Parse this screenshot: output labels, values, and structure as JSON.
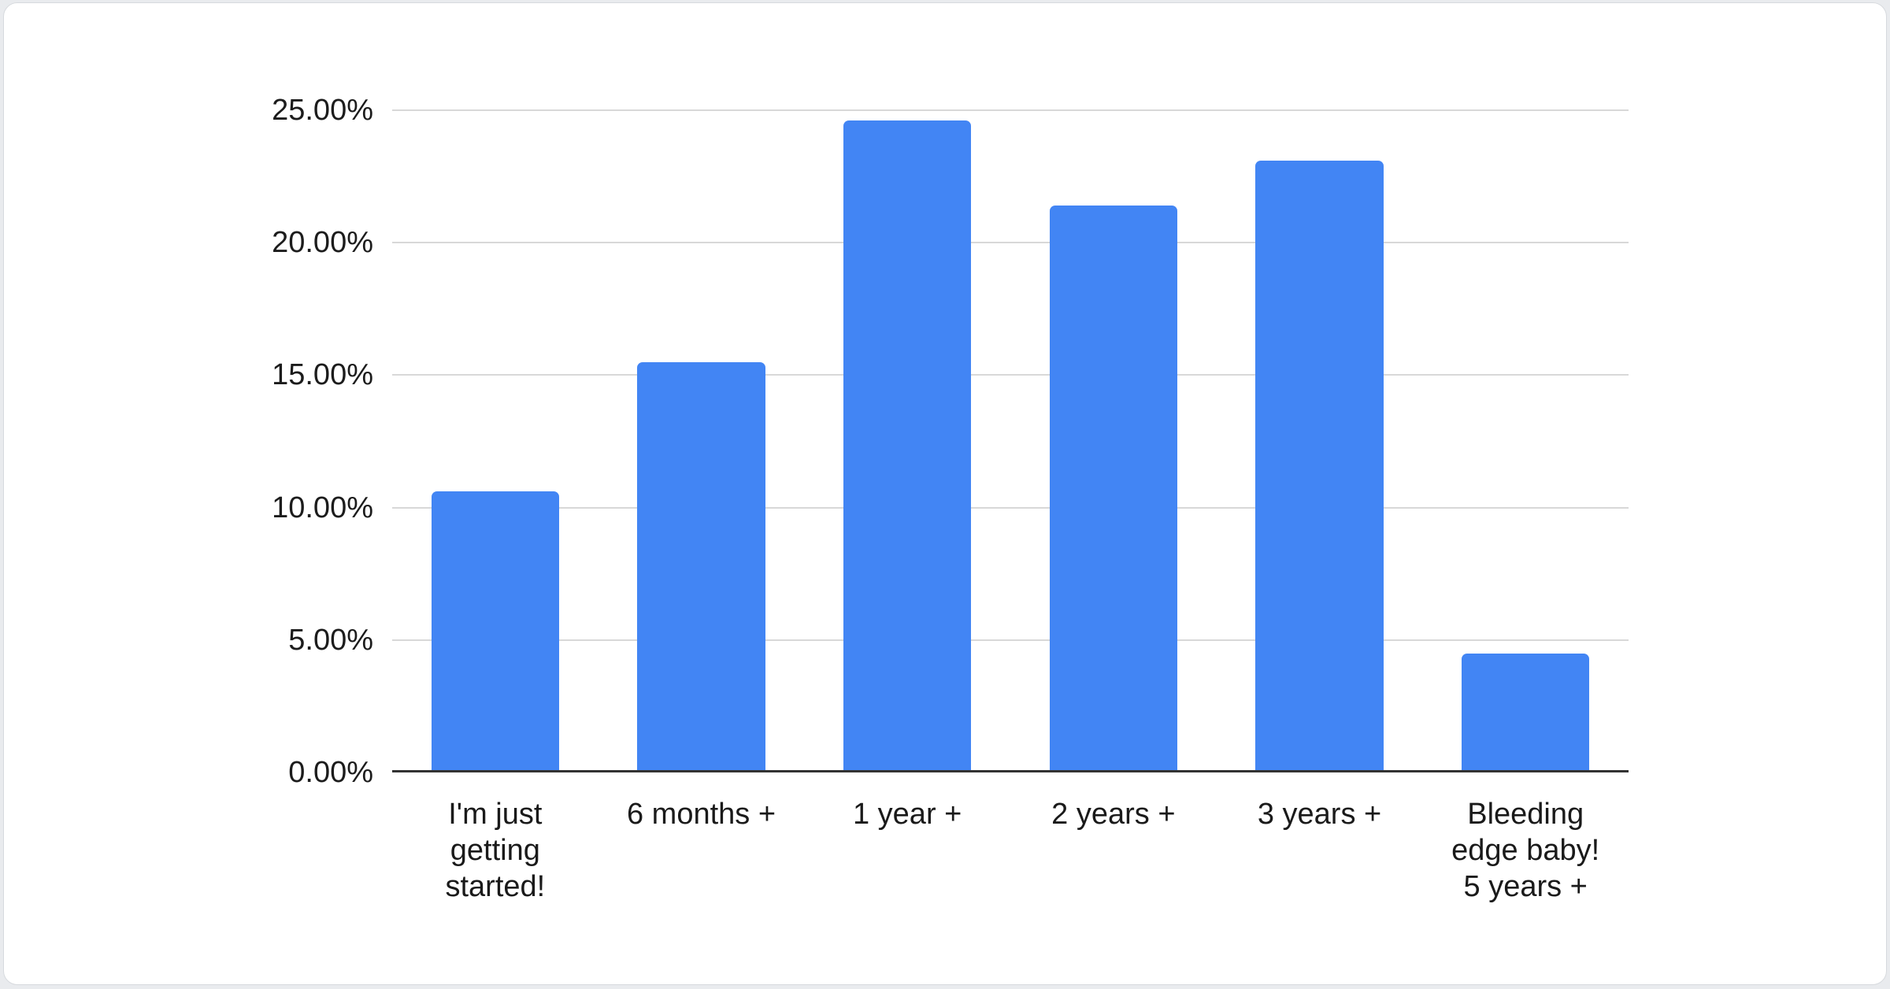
{
  "theme": {
    "page_bg": "#e9ebee",
    "card_bg": "#ffffff",
    "card_border": "#d7dade",
    "text_color": "#1a1a1a"
  },
  "chart_data": {
    "type": "bar",
    "title": "",
    "xlabel": "",
    "ylabel": "",
    "categories": [
      "I'm just\ngetting\nstarted!",
      "6 months +",
      "1 year +",
      "2 years +",
      "3 years +",
      "Bleeding\nedge baby!\n5 years +"
    ],
    "values": [
      10.6,
      15.5,
      24.6,
      21.4,
      23.1,
      4.5
    ],
    "value_unit": "percent",
    "ylim": [
      0,
      25
    ],
    "y_ticks": [
      {
        "label": "0.00%",
        "value": 0
      },
      {
        "label": "5.00%",
        "value": 5
      },
      {
        "label": "10.00%",
        "value": 10
      },
      {
        "label": "15.00%",
        "value": 15
      },
      {
        "label": "20.00%",
        "value": 20
      },
      {
        "label": "25.00%",
        "value": 25
      }
    ],
    "grid": true,
    "legend": "none",
    "bar_color": "#4285f4",
    "gridline_color": "#d8d8d8",
    "axis_line_color": "#333333"
  }
}
